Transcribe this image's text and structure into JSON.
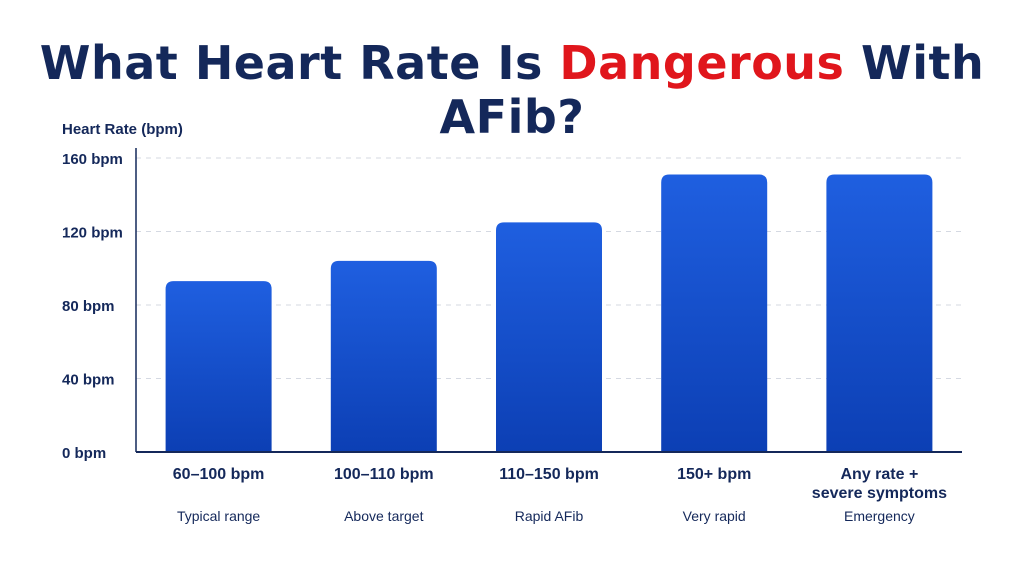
{
  "title": {
    "part1": "What Heart Rate Is ",
    "highlight": "Dangerous",
    "part2": " With AFib?"
  },
  "colors": {
    "title": "#14285a",
    "highlight": "#e0161c",
    "bar_top": "#1f5fe0",
    "bar_bottom": "#0c3fb4",
    "axis": "#14285a",
    "grid": "#d5d9e2"
  },
  "chart_data": {
    "type": "bar",
    "ylabel": "Heart Rate (bpm)",
    "ylim": [
      0,
      160
    ],
    "yticks": [
      {
        "value": 0,
        "label": "0 bpm"
      },
      {
        "value": 40,
        "label": "40 bpm"
      },
      {
        "value": 80,
        "label": "80 bpm"
      },
      {
        "value": 120,
        "label": "120 bpm"
      },
      {
        "value": 160,
        "label": "160 bpm"
      }
    ],
    "grid": true,
    "categories": [
      "60–100 bpm",
      "100–110 bpm",
      "110–150 bpm",
      "150+ bpm",
      "Any rate + severe symptoms"
    ],
    "category_lines": [
      [
        "60–100 bpm"
      ],
      [
        "100–110 bpm"
      ],
      [
        "110–150 bpm"
      ],
      [
        "150+ bpm"
      ],
      [
        "Any rate +",
        "severe symptoms"
      ]
    ],
    "sublabels": [
      "Typical range",
      "Above target",
      "Rapid AFib",
      "Very rapid",
      "Emergency"
    ],
    "values": [
      93,
      104,
      125,
      151,
      151
    ]
  }
}
